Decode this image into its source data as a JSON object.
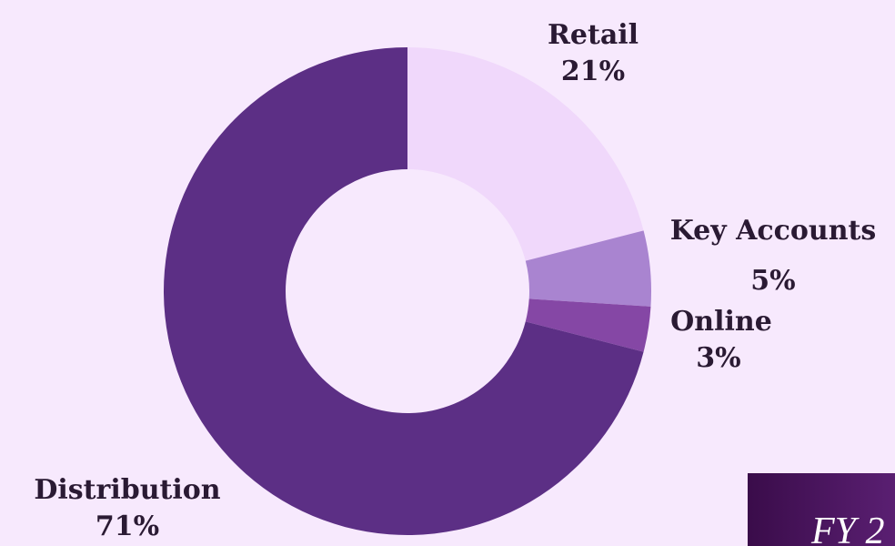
{
  "chart_data": {
    "type": "pie",
    "categories": [
      "Retail",
      "Key Accounts",
      "Online",
      "Distribution"
    ],
    "values": [
      21,
      5,
      3,
      71
    ],
    "value_labels": [
      "21%",
      "5%",
      "3%",
      "71%"
    ],
    "colors": [
      "#f0d8fb",
      "#a984d0",
      "#8547a5",
      "#5c2f85"
    ],
    "donut": true
  },
  "badge": {
    "text": "FY 2"
  }
}
